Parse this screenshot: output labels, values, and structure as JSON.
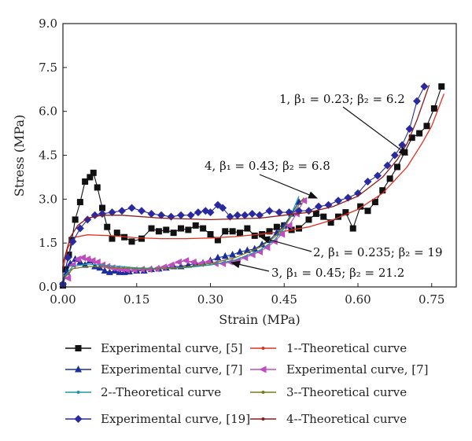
{
  "chart_data": {
    "type": "line",
    "xlabel": "Strain (MPa)",
    "ylabel": "Stress (MPa)",
    "xlim": [
      0,
      0.8
    ],
    "ylim": [
      0,
      9.0
    ],
    "xticks": [
      "0.00",
      "0.15",
      "0.30",
      "0.45",
      "0.60",
      "0.75"
    ],
    "yticks": [
      "0.0",
      "1.5",
      "3.0",
      "4.5",
      "6.0",
      "7.5",
      "9.0"
    ],
    "grid": false,
    "legend_position": "bottom",
    "series": [
      {
        "name": "Experimental curve, [5]",
        "color": "#111111",
        "marker": "square",
        "points": [
          [
            0.0,
            0.05
          ],
          [
            0.005,
            0.6
          ],
          [
            0.012,
            1.1
          ],
          [
            0.018,
            1.6
          ],
          [
            0.025,
            2.3
          ],
          [
            0.035,
            2.9
          ],
          [
            0.045,
            3.6
          ],
          [
            0.055,
            3.75
          ],
          [
            0.062,
            3.9
          ],
          [
            0.07,
            3.4
          ],
          [
            0.08,
            2.7
          ],
          [
            0.09,
            2.05
          ],
          [
            0.1,
            1.65
          ],
          [
            0.11,
            1.85
          ],
          [
            0.125,
            1.7
          ],
          [
            0.14,
            1.55
          ],
          [
            0.16,
            1.65
          ],
          [
            0.18,
            2.0
          ],
          [
            0.195,
            1.9
          ],
          [
            0.21,
            1.95
          ],
          [
            0.225,
            1.85
          ],
          [
            0.24,
            2.0
          ],
          [
            0.255,
            1.95
          ],
          [
            0.27,
            2.1
          ],
          [
            0.285,
            2.0
          ],
          [
            0.3,
            1.8
          ],
          [
            0.315,
            1.6
          ],
          [
            0.33,
            1.9
          ],
          [
            0.345,
            1.9
          ],
          [
            0.36,
            1.85
          ],
          [
            0.375,
            2.0
          ],
          [
            0.39,
            1.75
          ],
          [
            0.405,
            1.8
          ],
          [
            0.42,
            1.9
          ],
          [
            0.435,
            2.05
          ],
          [
            0.45,
            2.1
          ],
          [
            0.465,
            1.95
          ],
          [
            0.48,
            2.0
          ],
          [
            0.5,
            2.3
          ],
          [
            0.515,
            2.5
          ],
          [
            0.53,
            2.4
          ],
          [
            0.545,
            2.2
          ],
          [
            0.56,
            2.4
          ],
          [
            0.575,
            2.55
          ],
          [
            0.59,
            2.0
          ],
          [
            0.605,
            2.75
          ],
          [
            0.62,
            2.6
          ],
          [
            0.635,
            2.9
          ],
          [
            0.65,
            3.3
          ],
          [
            0.665,
            3.7
          ],
          [
            0.68,
            4.1
          ],
          [
            0.695,
            4.6
          ],
          [
            0.71,
            5.1
          ],
          [
            0.725,
            5.25
          ],
          [
            0.74,
            5.5
          ],
          [
            0.755,
            6.1
          ],
          [
            0.77,
            6.85
          ]
        ]
      },
      {
        "name": "1--Theoretical curve",
        "color": "#e03020",
        "points": [
          [
            0.0,
            0.6
          ],
          [
            0.01,
            1.35
          ],
          [
            0.025,
            1.7
          ],
          [
            0.05,
            1.78
          ],
          [
            0.1,
            1.75
          ],
          [
            0.15,
            1.68
          ],
          [
            0.2,
            1.65
          ],
          [
            0.25,
            1.65
          ],
          [
            0.3,
            1.67
          ],
          [
            0.35,
            1.72
          ],
          [
            0.4,
            1.8
          ],
          [
            0.45,
            1.9
          ],
          [
            0.5,
            2.05
          ],
          [
            0.55,
            2.3
          ],
          [
            0.6,
            2.65
          ],
          [
            0.65,
            3.2
          ],
          [
            0.7,
            4.1
          ],
          [
            0.73,
            4.9
          ],
          [
            0.75,
            5.5
          ],
          [
            0.775,
            6.6
          ]
        ]
      },
      {
        "name": "Experimental curve, [7]",
        "color": "#1c2d9c",
        "marker": "triangle-up",
        "points": [
          [
            0.0,
            0.1
          ],
          [
            0.008,
            0.5
          ],
          [
            0.015,
            0.8
          ],
          [
            0.025,
            0.95
          ],
          [
            0.035,
            0.85
          ],
          [
            0.045,
            0.75
          ],
          [
            0.055,
            0.9
          ],
          [
            0.065,
            0.7
          ],
          [
            0.075,
            0.65
          ],
          [
            0.085,
            0.55
          ],
          [
            0.095,
            0.5
          ],
          [
            0.105,
            0.55
          ],
          [
            0.115,
            0.5
          ],
          [
            0.125,
            0.5
          ],
          [
            0.135,
            0.52
          ],
          [
            0.15,
            0.55
          ],
          [
            0.165,
            0.55
          ],
          [
            0.18,
            0.6
          ],
          [
            0.195,
            0.62
          ],
          [
            0.21,
            0.65
          ],
          [
            0.225,
            0.7
          ],
          [
            0.24,
            0.7
          ],
          [
            0.255,
            0.75
          ],
          [
            0.27,
            0.8
          ],
          [
            0.285,
            0.82
          ],
          [
            0.3,
            0.9
          ],
          [
            0.315,
            1.0
          ],
          [
            0.33,
            1.05
          ],
          [
            0.345,
            1.1
          ],
          [
            0.36,
            1.2
          ],
          [
            0.375,
            1.25
          ],
          [
            0.39,
            1.3
          ],
          [
            0.405,
            1.45
          ],
          [
            0.42,
            1.6
          ],
          [
            0.435,
            1.85
          ],
          [
            0.45,
            2.1
          ],
          [
            0.465,
            2.5
          ],
          [
            0.48,
            2.9
          ]
        ]
      },
      {
        "name": "Experimental curve, [7]",
        "color": "#c04abf",
        "marker": "triangle-left",
        "points": [
          [
            0.01,
            0.3
          ],
          [
            0.02,
            0.75
          ],
          [
            0.03,
            0.95
          ],
          [
            0.04,
            1.0
          ],
          [
            0.05,
            0.95
          ],
          [
            0.06,
            0.9
          ],
          [
            0.07,
            0.85
          ],
          [
            0.08,
            0.75
          ],
          [
            0.09,
            0.7
          ],
          [
            0.1,
            0.65
          ],
          [
            0.11,
            0.62
          ],
          [
            0.12,
            0.6
          ],
          [
            0.13,
            0.58
          ],
          [
            0.145,
            0.58
          ],
          [
            0.16,
            0.6
          ],
          [
            0.175,
            0.6
          ],
          [
            0.19,
            0.62
          ],
          [
            0.205,
            0.68
          ],
          [
            0.22,
            0.75
          ],
          [
            0.235,
            0.85
          ],
          [
            0.25,
            0.9
          ],
          [
            0.265,
            0.85
          ],
          [
            0.28,
            0.8
          ],
          [
            0.295,
            0.85
          ],
          [
            0.31,
            0.8
          ],
          [
            0.325,
            0.8
          ],
          [
            0.34,
            0.85
          ],
          [
            0.355,
            0.9
          ],
          [
            0.37,
            1.0
          ],
          [
            0.385,
            1.1
          ],
          [
            0.4,
            1.2
          ],
          [
            0.415,
            1.35
          ],
          [
            0.43,
            1.55
          ],
          [
            0.445,
            1.8
          ],
          [
            0.46,
            2.1
          ],
          [
            0.475,
            2.5
          ],
          [
            0.49,
            2.95
          ]
        ]
      },
      {
        "name": "2--Theoretical curve",
        "color": "#1a9aa0",
        "points": [
          [
            0.0,
            0.3
          ],
          [
            0.02,
            0.7
          ],
          [
            0.05,
            0.78
          ],
          [
            0.1,
            0.72
          ],
          [
            0.15,
            0.65
          ],
          [
            0.2,
            0.63
          ],
          [
            0.25,
            0.66
          ],
          [
            0.3,
            0.75
          ],
          [
            0.35,
            0.92
          ],
          [
            0.4,
            1.25
          ],
          [
            0.43,
            1.6
          ],
          [
            0.45,
            2.0
          ],
          [
            0.465,
            2.5
          ],
          [
            0.48,
            3.1
          ]
        ]
      },
      {
        "name": "3--Theoretical curve",
        "color": "#7a7a18",
        "points": [
          [
            0.0,
            0.25
          ],
          [
            0.02,
            0.62
          ],
          [
            0.05,
            0.7
          ],
          [
            0.1,
            0.66
          ],
          [
            0.15,
            0.62
          ],
          [
            0.2,
            0.62
          ],
          [
            0.25,
            0.68
          ],
          [
            0.3,
            0.8
          ],
          [
            0.35,
            1.0
          ],
          [
            0.4,
            1.35
          ],
          [
            0.43,
            1.7
          ],
          [
            0.45,
            2.05
          ],
          [
            0.47,
            2.55
          ],
          [
            0.49,
            3.05
          ]
        ]
      },
      {
        "name": "Experimental curve, [19]",
        "color": "#2a2aa0",
        "marker": "diamond",
        "points": [
          [
            0.0,
            0.1
          ],
          [
            0.01,
            1.0
          ],
          [
            0.02,
            1.55
          ],
          [
            0.035,
            2.0
          ],
          [
            0.05,
            2.3
          ],
          [
            0.065,
            2.45
          ],
          [
            0.08,
            2.5
          ],
          [
            0.1,
            2.55
          ],
          [
            0.12,
            2.6
          ],
          [
            0.14,
            2.7
          ],
          [
            0.16,
            2.6
          ],
          [
            0.18,
            2.5
          ],
          [
            0.2,
            2.45
          ],
          [
            0.22,
            2.4
          ],
          [
            0.24,
            2.45
          ],
          [
            0.26,
            2.45
          ],
          [
            0.275,
            2.55
          ],
          [
            0.29,
            2.6
          ],
          [
            0.3,
            2.55
          ],
          [
            0.315,
            2.8
          ],
          [
            0.325,
            2.7
          ],
          [
            0.34,
            2.4
          ],
          [
            0.355,
            2.45
          ],
          [
            0.37,
            2.45
          ],
          [
            0.385,
            2.5
          ],
          [
            0.4,
            2.45
          ],
          [
            0.42,
            2.6
          ],
          [
            0.44,
            2.55
          ],
          [
            0.46,
            2.55
          ],
          [
            0.48,
            2.6
          ],
          [
            0.5,
            2.6
          ],
          [
            0.52,
            2.75
          ],
          [
            0.54,
            2.8
          ],
          [
            0.56,
            2.95
          ],
          [
            0.58,
            3.05
          ],
          [
            0.6,
            3.2
          ],
          [
            0.62,
            3.6
          ],
          [
            0.64,
            3.8
          ],
          [
            0.66,
            4.15
          ],
          [
            0.675,
            4.5
          ],
          [
            0.69,
            4.85
          ],
          [
            0.705,
            5.4
          ],
          [
            0.72,
            6.35
          ],
          [
            0.735,
            6.85
          ]
        ]
      },
      {
        "name": "4--Theoretical curve",
        "color": "#8b1a1a",
        "points": [
          [
            0.0,
            0.8
          ],
          [
            0.015,
            1.7
          ],
          [
            0.03,
            2.1
          ],
          [
            0.05,
            2.35
          ],
          [
            0.08,
            2.45
          ],
          [
            0.12,
            2.45
          ],
          [
            0.2,
            2.35
          ],
          [
            0.3,
            2.3
          ],
          [
            0.4,
            2.35
          ],
          [
            0.45,
            2.45
          ],
          [
            0.5,
            2.55
          ],
          [
            0.55,
            2.75
          ],
          [
            0.6,
            3.1
          ],
          [
            0.65,
            3.75
          ],
          [
            0.68,
            4.35
          ],
          [
            0.7,
            4.9
          ],
          [
            0.72,
            5.7
          ],
          [
            0.745,
            6.9
          ]
        ]
      }
    ],
    "annotations": [
      {
        "text": "1, β₁ = 0.23; β₂ = 6.2"
      },
      {
        "text": "4, β₁ = 0.43; β₂ = 6.8"
      },
      {
        "text": "2, β₁ = 0.235; β₂ = 19"
      },
      {
        "text": "3, β₁ = 0.45; β₂ = 21.2"
      }
    ]
  }
}
